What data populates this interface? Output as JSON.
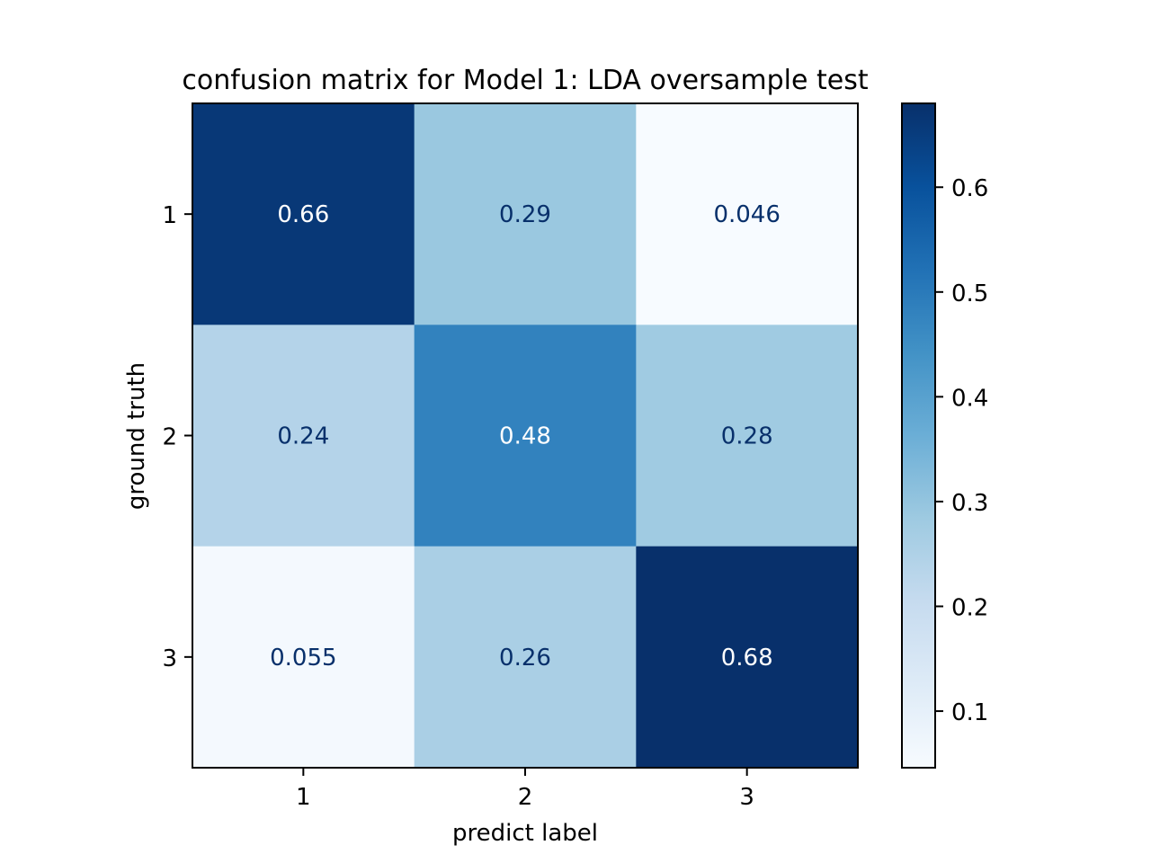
{
  "chart_data": {
    "type": "heatmap",
    "title": "confusion matrix for Model 1: LDA oversample test",
    "xlabel": "predict label",
    "ylabel": "ground truth",
    "x_categories": [
      "1",
      "2",
      "3"
    ],
    "y_categories": [
      "1",
      "2",
      "3"
    ],
    "values": [
      [
        0.66,
        0.29,
        0.046
      ],
      [
        0.24,
        0.48,
        0.28
      ],
      [
        0.055,
        0.26,
        0.68
      ]
    ],
    "cell_labels": [
      [
        "0.66",
        "0.29",
        "0.046"
      ],
      [
        "0.24",
        "0.48",
        "0.28"
      ],
      [
        "0.055",
        "0.26",
        "0.68"
      ]
    ],
    "colormap": "Blues",
    "colorbar": {
      "range": [
        0.046,
        0.68
      ],
      "ticks": [
        0.1,
        0.2,
        0.3,
        0.4,
        0.5,
        0.6
      ],
      "tick_labels": [
        "0.1",
        "0.2",
        "0.3",
        "0.4",
        "0.5",
        "0.6"
      ]
    },
    "text_colors": {
      "light": "#ffffff",
      "dark": "#08306b"
    },
    "grid": false
  }
}
